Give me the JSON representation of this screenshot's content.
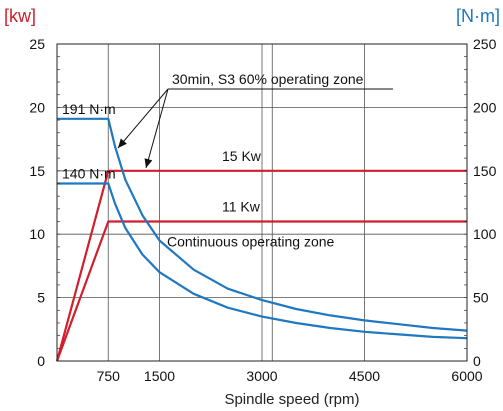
{
  "chart_data": {
    "type": "line",
    "xlabel": "Spindle speed (rpm)",
    "x_ticks": [
      750,
      1500,
      3000,
      4500,
      6000
    ],
    "x_gridlines": [
      750,
      1500,
      3000,
      3150,
      4500
    ],
    "xlim": [
      0,
      6000
    ],
    "y_left": {
      "unit": "[kw]",
      "ylim": [
        0,
        25
      ],
      "ticks": [
        0,
        5,
        10,
        15,
        20,
        25
      ],
      "color": "#d11f2c"
    },
    "y_right": {
      "unit": "[N·m]",
      "ylim": [
        0,
        250
      ],
      "ticks": [
        0,
        50,
        100,
        150,
        200,
        250
      ],
      "color": "#1f78c1"
    },
    "grid": "horizontal at 5 kW steps; vertical at listed x_gridlines",
    "series": [
      {
        "axis": "left",
        "color": "#d11f2c",
        "x": [
          0,
          750,
          6000
        ],
        "y": [
          0,
          15,
          15
        ]
      },
      {
        "axis": "left",
        "color": "#d11f2c",
        "x": [
          0,
          750,
          6000
        ],
        "y": [
          0,
          11,
          11
        ]
      },
      {
        "axis": "right",
        "color": "#1f78c1",
        "x": [
          0,
          750,
          850,
          1000,
          1250,
          1500,
          2000,
          2500,
          3000,
          3500,
          4000,
          4500,
          5000,
          5500,
          6000
        ],
        "y": [
          191,
          191,
          169,
          143,
          115,
          95,
          72,
          57,
          48,
          41,
          36,
          32,
          29,
          26,
          24
        ]
      },
      {
        "axis": "right",
        "color": "#1f78c1",
        "x": [
          0,
          750,
          850,
          1000,
          1250,
          1500,
          2000,
          2500,
          3000,
          3500,
          4000,
          4500,
          5000,
          5500,
          6000
        ],
        "y": [
          140,
          140,
          124,
          105,
          84,
          70,
          53,
          42,
          35,
          30,
          26,
          23,
          21,
          19,
          18
        ]
      }
    ],
    "annotations": {
      "torque_high": "191 N·m",
      "torque_low": "140 N·m",
      "power_high": "15 Kw",
      "power_low": "11 Kw",
      "s3_zone": "30min, S3 60% operating zone",
      "cont_zone": "Continuous operating zone"
    }
  }
}
